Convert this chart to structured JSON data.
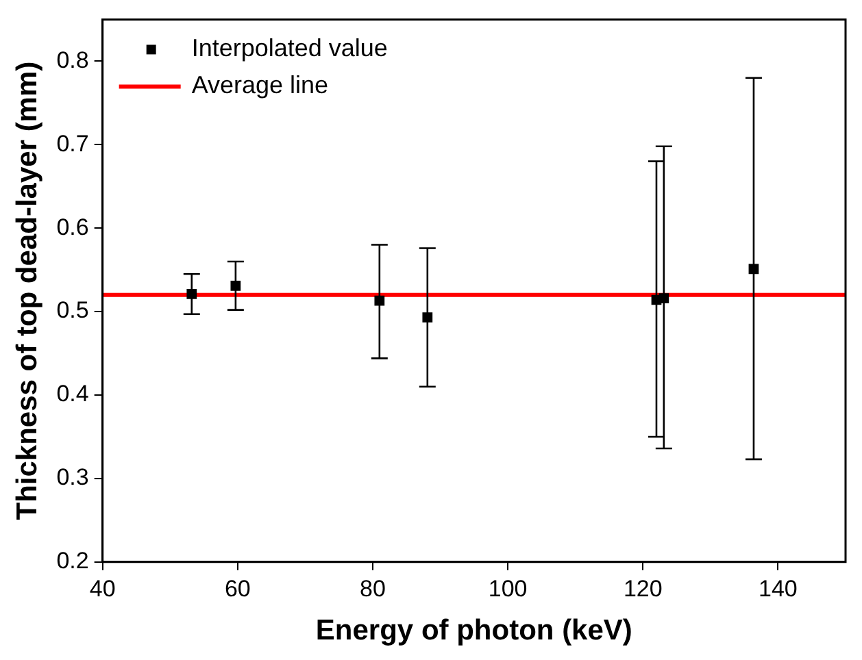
{
  "chart_data": {
    "type": "scatter",
    "xlabel": "Energy of photon (keV)",
    "ylabel": "Thickness of top dead-layer (mm)",
    "xlim": [
      40,
      150
    ],
    "xticks": [
      40,
      60,
      80,
      100,
      120,
      140
    ],
    "ylim": [
      0.2,
      0.85
    ],
    "yticks": [
      0.2,
      0.3,
      0.4,
      0.5,
      0.6,
      0.7,
      0.8
    ],
    "grid": false,
    "legend": "top left",
    "marker": "square",
    "series": [
      {
        "name": "Interpolated value",
        "color": "#000000",
        "x": [
          53.2,
          59.7,
          81.0,
          88.1,
          122.0,
          123.1,
          136.4
        ],
        "values": [
          0.521,
          0.531,
          0.513,
          0.493,
          0.514,
          0.516,
          0.551
        ],
        "errors": [
          [
            0.497,
            0.545
          ],
          [
            0.502,
            0.56
          ],
          [
            0.444,
            0.58
          ],
          [
            0.41,
            0.576
          ],
          [
            0.35,
            0.68
          ],
          [
            0.336,
            0.698
          ],
          [
            0.323,
            0.78
          ]
        ]
      },
      {
        "name": "Average line",
        "type": "line",
        "color": "#ff0000",
        "marker": "none",
        "x": [
          40,
          150
        ],
        "values": [
          0.52,
          0.52
        ]
      }
    ]
  }
}
